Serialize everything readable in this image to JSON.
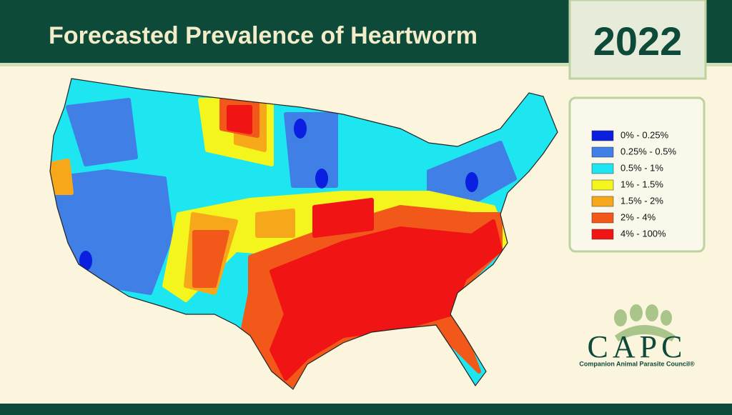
{
  "header": {
    "title": "Forecasted Prevalence of Heartworm",
    "year": "2022"
  },
  "legend": {
    "items": [
      {
        "label": "0% - 0.25%",
        "color": "#0a1fe0"
      },
      {
        "label": "0.25% - 0.5%",
        "color": "#3f7fe6"
      },
      {
        "label": "0.5% - 1%",
        "color": "#1ee6f0"
      },
      {
        "label": "1% - 1.5%",
        "color": "#f5f51e"
      },
      {
        "label": "1.5% - 2%",
        "color": "#f6a81a"
      },
      {
        "label": "2% - 4%",
        "color": "#f2581a"
      },
      {
        "label": "4% - 100%",
        "color": "#f01414"
      }
    ]
  },
  "logo": {
    "name": "CAPC",
    "subtitle": "Companion Animal Parasite Council®"
  }
}
